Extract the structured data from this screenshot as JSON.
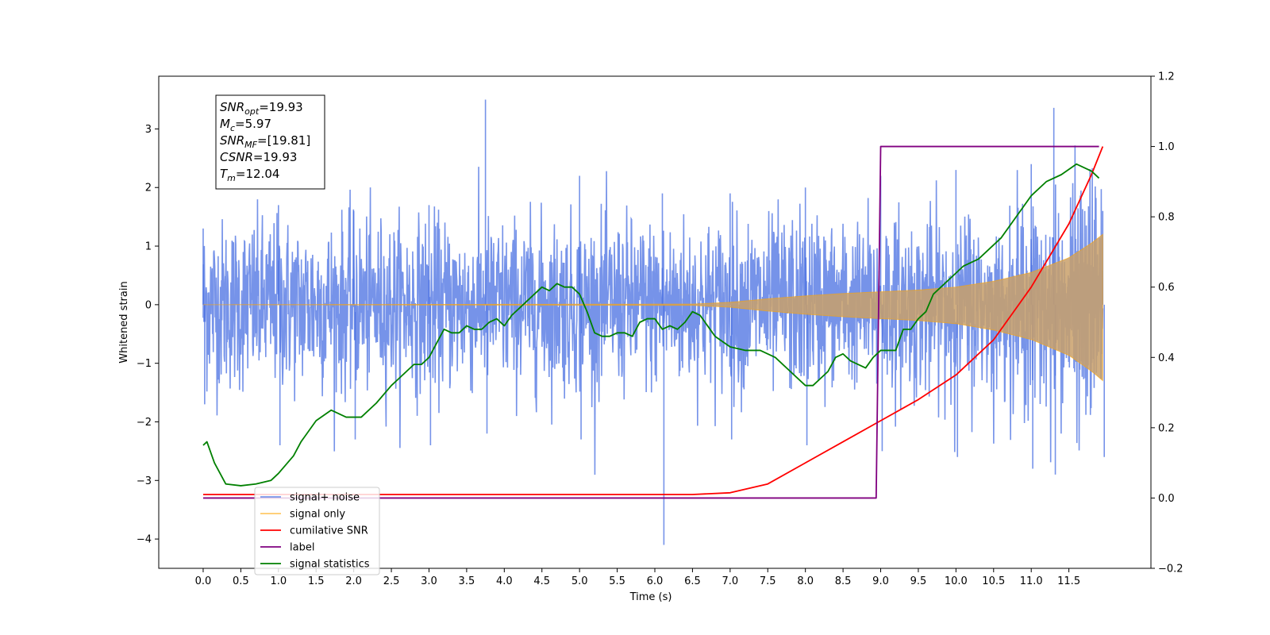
{
  "chart_data": {
    "type": "line",
    "title": "",
    "xlabel": "Time (s)",
    "ylabel": "Whitened strain",
    "y2label": "",
    "xlim": [
      -0.59,
      12.59
    ],
    "ylim": [
      -4.5,
      3.9
    ],
    "y2lim": [
      -0.2,
      1.2
    ],
    "x_ticks": [
      "0.0",
      "0.5",
      "1.0",
      "1.5",
      "2.0",
      "2.5",
      "3.0",
      "3.5",
      "4.0",
      "4.5",
      "5.0",
      "5.5",
      "6.0",
      "6.5",
      "7.0",
      "7.5",
      "8.0",
      "8.5",
      "9.0",
      "9.5",
      "10.0",
      "10.5",
      "11.0",
      "11.5"
    ],
    "y_ticks": [
      "3",
      "2",
      "1",
      "0",
      "−1",
      "−2",
      "−3",
      "−4"
    ],
    "y2_ticks": [
      "1.2",
      "1.0",
      "0.8",
      "0.6",
      "0.4",
      "0.2",
      "0.0",
      "−0.2"
    ],
    "grid": false,
    "legend_position": "lower-left",
    "annotations": [
      {
        "sym": "SNR",
        "sub": "opt",
        "val": "=19.93"
      },
      {
        "sym": "M",
        "sub": "c",
        "val": "=5.97"
      },
      {
        "sym": "SNR",
        "sub": "MF",
        "val": "=[19.81]"
      },
      {
        "sym": "CSNR",
        "sub": "",
        "val": "=19.93"
      },
      {
        "sym": "T",
        "sub": "m",
        "val": "=12.04"
      }
    ],
    "series": [
      {
        "name": "signal+ noise",
        "color": "#4169e1",
        "axis": "left",
        "note": "noise band approx ±1.6, peaks 3.5 at 3.75, 3.36 at 11.3, trough -4.1 at 6.1; envelope widens near merger",
        "envelope": [
          [
            0.0,
            1.3,
            -1.7
          ],
          [
            1.0,
            1.7,
            -2.4
          ],
          [
            2.0,
            1.6,
            -2.3
          ],
          [
            3.0,
            1.7,
            -2.4
          ],
          [
            3.75,
            3.5,
            -2.2
          ],
          [
            5.0,
            2.2,
            -2.3
          ],
          [
            6.1,
            1.9,
            -4.1
          ],
          [
            7.0,
            1.9,
            -2.3
          ],
          [
            8.0,
            2.0,
            -2.4
          ],
          [
            9.0,
            2.2,
            -2.5
          ],
          [
            10.0,
            2.3,
            -2.6
          ],
          [
            11.0,
            2.4,
            -2.8
          ],
          [
            11.3,
            3.36,
            -2.9
          ],
          [
            11.95,
            1.6,
            -2.6
          ]
        ]
      },
      {
        "name": "signal only",
        "color": "#ffa500",
        "axis": "left",
        "x": [
          0.0,
          6.5,
          7.0,
          7.5,
          8.0,
          8.5,
          9.0,
          9.5,
          10.0,
          10.5,
          11.0,
          11.5,
          11.8,
          11.95
        ],
        "y": [
          0.0,
          0.01,
          0.04,
          0.1,
          0.15,
          0.19,
          0.22,
          0.25,
          0.3,
          0.4,
          0.55,
          0.8,
          1.05,
          1.2
        ]
      },
      {
        "name": "cumilative SNR",
        "color": "#ff0000",
        "axis": "right",
        "x": [
          0.0,
          6.5,
          7.0,
          7.5,
          8.0,
          8.5,
          9.0,
          9.5,
          10.0,
          10.5,
          11.0,
          11.5,
          11.8,
          11.95
        ],
        "y": [
          0.01,
          0.01,
          0.015,
          0.04,
          0.1,
          0.16,
          0.22,
          0.28,
          0.35,
          0.45,
          0.6,
          0.78,
          0.92,
          1.0
        ]
      },
      {
        "name": "label",
        "color": "#800080",
        "axis": "right",
        "x": [
          0.0,
          8.94,
          9.0,
          11.9
        ],
        "y": [
          0.0,
          0.0,
          1.0,
          1.0
        ]
      },
      {
        "name": "signal statistics",
        "color": "#008000",
        "axis": "right",
        "x": [
          0.0,
          0.05,
          0.15,
          0.3,
          0.5,
          0.7,
          0.9,
          1.0,
          1.2,
          1.3,
          1.5,
          1.7,
          1.9,
          2.0,
          2.1,
          2.3,
          2.5,
          2.6,
          2.7,
          2.8,
          2.9,
          3.0,
          3.1,
          3.2,
          3.3,
          3.4,
          3.5,
          3.6,
          3.7,
          3.8,
          3.9,
          4.0,
          4.1,
          4.2,
          4.3,
          4.4,
          4.5,
          4.6,
          4.7,
          4.8,
          4.9,
          5.0,
          5.1,
          5.2,
          5.3,
          5.4,
          5.5,
          5.6,
          5.7,
          5.8,
          5.9,
          6.0,
          6.1,
          6.2,
          6.3,
          6.4,
          6.5,
          6.6,
          6.8,
          7.0,
          7.2,
          7.4,
          7.6,
          7.8,
          8.0,
          8.1,
          8.2,
          8.3,
          8.4,
          8.5,
          8.6,
          8.8,
          8.9,
          9.0,
          9.1,
          9.2,
          9.3,
          9.4,
          9.5,
          9.6,
          9.7,
          9.8,
          9.9,
          10.0,
          10.1,
          10.3,
          10.5,
          10.6,
          10.7,
          10.8,
          10.9,
          11.0,
          11.2,
          11.4,
          11.6,
          11.8,
          11.9
        ],
        "y": [
          0.15,
          0.16,
          0.1,
          0.04,
          0.035,
          0.04,
          0.05,
          0.07,
          0.12,
          0.16,
          0.22,
          0.25,
          0.23,
          0.23,
          0.23,
          0.27,
          0.32,
          0.34,
          0.36,
          0.38,
          0.38,
          0.4,
          0.44,
          0.48,
          0.47,
          0.47,
          0.49,
          0.48,
          0.48,
          0.5,
          0.51,
          0.49,
          0.52,
          0.54,
          0.56,
          0.58,
          0.6,
          0.59,
          0.61,
          0.6,
          0.6,
          0.58,
          0.53,
          0.47,
          0.46,
          0.46,
          0.47,
          0.47,
          0.46,
          0.5,
          0.51,
          0.51,
          0.48,
          0.49,
          0.48,
          0.5,
          0.53,
          0.52,
          0.46,
          0.43,
          0.42,
          0.42,
          0.4,
          0.36,
          0.32,
          0.32,
          0.34,
          0.36,
          0.4,
          0.41,
          0.39,
          0.37,
          0.4,
          0.42,
          0.42,
          0.42,
          0.48,
          0.48,
          0.51,
          0.53,
          0.58,
          0.6,
          0.62,
          0.64,
          0.66,
          0.68,
          0.72,
          0.74,
          0.77,
          0.8,
          0.83,
          0.86,
          0.9,
          0.92,
          0.95,
          0.93,
          0.91
        ]
      }
    ]
  }
}
